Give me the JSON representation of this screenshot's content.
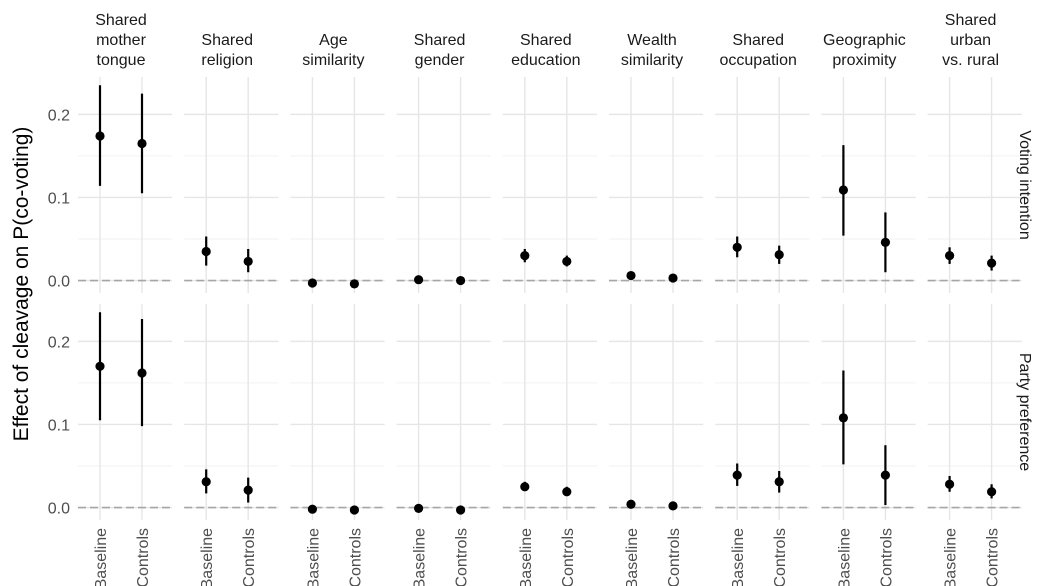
{
  "chart_data": {
    "type": "scatter",
    "ylabel": "Effect of cleavage on P(co-voting)",
    "xlabel": "",
    "ylim": [
      -0.015,
      0.245
    ],
    "yticks": [
      0.0,
      0.1,
      0.2
    ],
    "ytick_labels": [
      "0.0",
      "0.1",
      "0.2"
    ],
    "grid": true,
    "reference_line": {
      "y": 0,
      "style": "dashed"
    },
    "categories": [
      "Baseline",
      "Controls"
    ],
    "columns": [
      {
        "key": "mother",
        "label_lines": [
          "Shared",
          "mother",
          "tongue"
        ]
      },
      {
        "key": "religion",
        "label_lines": [
          "Shared",
          "religion"
        ]
      },
      {
        "key": "age",
        "label_lines": [
          "Age",
          "similarity"
        ]
      },
      {
        "key": "gender",
        "label_lines": [
          "Shared",
          "gender"
        ]
      },
      {
        "key": "education",
        "label_lines": [
          "Shared",
          "education"
        ]
      },
      {
        "key": "wealth",
        "label_lines": [
          "Wealth",
          "similarity"
        ]
      },
      {
        "key": "occupation",
        "label_lines": [
          "Shared",
          "occupation"
        ]
      },
      {
        "key": "geo",
        "label_lines": [
          "Geographic",
          "proximity"
        ]
      },
      {
        "key": "urban",
        "label_lines": [
          "Shared",
          "urban",
          "vs. rural"
        ]
      }
    ],
    "rows": [
      {
        "label": "Voting intention",
        "panels": [
          {
            "points": [
              {
                "category": "Baseline",
                "y": 0.174,
                "low": 0.114,
                "high": 0.235
              },
              {
                "category": "Controls",
                "y": 0.165,
                "low": 0.105,
                "high": 0.225
              }
            ]
          },
          {
            "points": [
              {
                "category": "Baseline",
                "y": 0.035,
                "low": 0.018,
                "high": 0.053
              },
              {
                "category": "Controls",
                "y": 0.023,
                "low": 0.01,
                "high": 0.038
              }
            ]
          },
          {
            "points": [
              {
                "category": "Baseline",
                "y": -0.003,
                "low": -0.005,
                "high": -0.001
              },
              {
                "category": "Controls",
                "y": -0.004,
                "low": -0.006,
                "high": -0.002
              }
            ]
          },
          {
            "points": [
              {
                "category": "Baseline",
                "y": 0.001,
                "low": -0.001,
                "high": 0.003
              },
              {
                "category": "Controls",
                "y": 0.0,
                "low": -0.002,
                "high": 0.002
              }
            ]
          },
          {
            "points": [
              {
                "category": "Baseline",
                "y": 0.03,
                "low": 0.022,
                "high": 0.038
              },
              {
                "category": "Controls",
                "y": 0.023,
                "low": 0.017,
                "high": 0.03
              }
            ]
          },
          {
            "points": [
              {
                "category": "Baseline",
                "y": 0.006,
                "low": 0.003,
                "high": 0.009
              },
              {
                "category": "Controls",
                "y": 0.003,
                "low": 0.001,
                "high": 0.006
              }
            ]
          },
          {
            "points": [
              {
                "category": "Baseline",
                "y": 0.04,
                "low": 0.028,
                "high": 0.053
              },
              {
                "category": "Controls",
                "y": 0.031,
                "low": 0.02,
                "high": 0.042
              }
            ]
          },
          {
            "points": [
              {
                "category": "Baseline",
                "y": 0.109,
                "low": 0.054,
                "high": 0.163
              },
              {
                "category": "Controls",
                "y": 0.046,
                "low": 0.01,
                "high": 0.082
              }
            ]
          },
          {
            "points": [
              {
                "category": "Baseline",
                "y": 0.03,
                "low": 0.02,
                "high": 0.04
              },
              {
                "category": "Controls",
                "y": 0.021,
                "low": 0.012,
                "high": 0.03
              }
            ]
          }
        ]
      },
      {
        "label": "Party preference",
        "panels": [
          {
            "points": [
              {
                "category": "Baseline",
                "y": 0.17,
                "low": 0.105,
                "high": 0.235
              },
              {
                "category": "Controls",
                "y": 0.162,
                "low": 0.098,
                "high": 0.227
              }
            ]
          },
          {
            "points": [
              {
                "category": "Baseline",
                "y": 0.031,
                "low": 0.017,
                "high": 0.046
              },
              {
                "category": "Controls",
                "y": 0.021,
                "low": 0.006,
                "high": 0.036
              }
            ]
          },
          {
            "points": [
              {
                "category": "Baseline",
                "y": -0.002,
                "low": -0.004,
                "high": 0.0
              },
              {
                "category": "Controls",
                "y": -0.003,
                "low": -0.005,
                "high": -0.001
              }
            ]
          },
          {
            "points": [
              {
                "category": "Baseline",
                "y": -0.001,
                "low": -0.003,
                "high": 0.001
              },
              {
                "category": "Controls",
                "y": -0.003,
                "low": -0.005,
                "high": -0.001
              }
            ]
          },
          {
            "points": [
              {
                "category": "Baseline",
                "y": 0.025,
                "low": 0.02,
                "high": 0.031
              },
              {
                "category": "Controls",
                "y": 0.019,
                "low": 0.014,
                "high": 0.025
              }
            ]
          },
          {
            "points": [
              {
                "category": "Baseline",
                "y": 0.004,
                "low": 0.002,
                "high": 0.007
              },
              {
                "category": "Controls",
                "y": 0.002,
                "low": 0.0,
                "high": 0.004
              }
            ]
          },
          {
            "points": [
              {
                "category": "Baseline",
                "y": 0.039,
                "low": 0.026,
                "high": 0.053
              },
              {
                "category": "Controls",
                "y": 0.031,
                "low": 0.018,
                "high": 0.044
              }
            ]
          },
          {
            "points": [
              {
                "category": "Baseline",
                "y": 0.108,
                "low": 0.052,
                "high": 0.165
              },
              {
                "category": "Controls",
                "y": 0.039,
                "low": 0.003,
                "high": 0.075
              }
            ]
          },
          {
            "points": [
              {
                "category": "Baseline",
                "y": 0.028,
                "low": 0.019,
                "high": 0.038
              },
              {
                "category": "Controls",
                "y": 0.019,
                "low": 0.011,
                "high": 0.028
              }
            ]
          }
        ]
      }
    ]
  }
}
